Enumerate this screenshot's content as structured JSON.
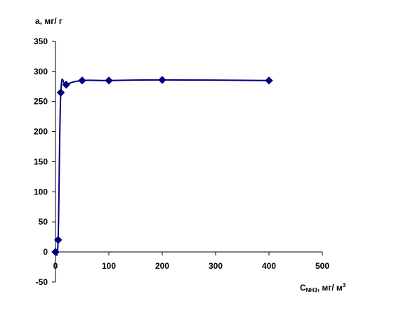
{
  "chart_data": {
    "type": "scatter",
    "ylabel": "а, мг/ г",
    "xlabel": {
      "main": "C",
      "subscript": "NH3",
      "suffix": ", мг/ м",
      "superscript": "3"
    },
    "xlim": [
      0,
      500
    ],
    "ylim": [
      -50,
      350
    ],
    "x_ticks": [
      0,
      100,
      200,
      300,
      400,
      500
    ],
    "y_ticks": [
      -50,
      0,
      50,
      100,
      150,
      200,
      250,
      300,
      350
    ],
    "grid": false,
    "legend": "none",
    "line_color": "#000080",
    "marker_color": "#000080",
    "marker": "diamond",
    "smooth": true,
    "series": [
      {
        "x": [
          0,
          5,
          10,
          20,
          50,
          100,
          200,
          400
        ],
        "y": [
          0,
          20,
          265,
          278,
          285,
          285,
          286,
          285
        ]
      }
    ]
  }
}
